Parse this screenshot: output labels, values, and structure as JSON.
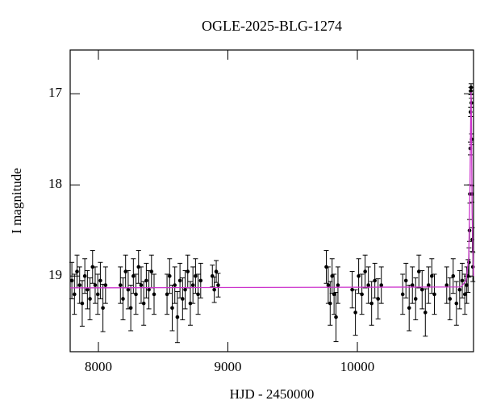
{
  "chart_data": {
    "type": "scatter",
    "title": "OGLE-2025-BLG-1274",
    "x_label": "HJD - 2450000",
    "y_label": "I magnitude",
    "xlim": [
      7782,
      10897
    ],
    "ylim": [
      16.52,
      19.83
    ],
    "y_inverted": true,
    "xticks": [
      8000,
      9000,
      10000
    ],
    "yticks": [
      17,
      18,
      19
    ],
    "points": {
      "color": "#000000",
      "x": [
        7795,
        7815,
        7835,
        7855,
        7875,
        7895,
        7915,
        7935,
        7955,
        7975,
        7995,
        8015,
        8035,
        8055,
        8170,
        8190,
        8210,
        8230,
        8250,
        8270,
        8290,
        8310,
        8330,
        8350,
        8370,
        8390,
        8410,
        8430,
        8530,
        8550,
        8570,
        8590,
        8610,
        8630,
        8650,
        8670,
        8690,
        8710,
        8730,
        8750,
        8770,
        8790,
        8880,
        8895,
        8910,
        8925,
        9760,
        9775,
        9790,
        9805,
        9820,
        9835,
        9850,
        9960,
        9985,
        10010,
        10035,
        10060,
        10085,
        10110,
        10135,
        10160,
        10185,
        10350,
        10375,
        10400,
        10425,
        10450,
        10475,
        10500,
        10525,
        10550,
        10575,
        10595,
        10690,
        10715,
        10740,
        10765,
        10790,
        10810,
        10830,
        10845,
        10855,
        10862,
        10866,
        10869,
        10872,
        10874,
        10876,
        10878,
        10880,
        10882,
        10885,
        10888,
        10892
      ],
      "values": [
        19.05,
        19.2,
        18.95,
        19.1,
        19.3,
        19.0,
        19.15,
        19.25,
        18.9,
        19.1,
        19.2,
        19.05,
        19.35,
        19.1,
        19.1,
        19.25,
        18.95,
        19.15,
        19.35,
        19.0,
        19.2,
        18.9,
        19.1,
        19.3,
        19.05,
        19.15,
        18.95,
        19.2,
        19.2,
        19.0,
        19.35,
        19.1,
        19.45,
        19.05,
        19.25,
        19.15,
        18.95,
        19.3,
        19.1,
        19.0,
        19.2,
        19.05,
        19.0,
        19.15,
        18.95,
        19.1,
        18.9,
        19.1,
        19.3,
        19.0,
        19.2,
        19.45,
        19.1,
        19.15,
        19.4,
        19.0,
        19.2,
        18.95,
        19.1,
        19.3,
        19.05,
        19.25,
        19.1,
        19.2,
        19.05,
        19.35,
        19.1,
        19.25,
        18.95,
        19.15,
        19.4,
        19.1,
        19.0,
        19.2,
        19.1,
        19.25,
        19.0,
        19.3,
        19.15,
        19.05,
        19.2,
        19.1,
        19.0,
        18.85,
        18.5,
        18.1,
        17.6,
        17.2,
        16.97,
        16.93,
        17.1,
        17.5,
        18.1,
        18.6,
        18.9
      ],
      "errors": [
        0.2,
        0.22,
        0.18,
        0.2,
        0.25,
        0.19,
        0.21,
        0.23,
        0.18,
        0.2,
        0.22,
        0.2,
        0.26,
        0.2,
        0.2,
        0.23,
        0.18,
        0.21,
        0.25,
        0.19,
        0.22,
        0.18,
        0.2,
        0.24,
        0.19,
        0.21,
        0.18,
        0.22,
        0.22,
        0.19,
        0.25,
        0.2,
        0.28,
        0.19,
        0.23,
        0.21,
        0.18,
        0.24,
        0.2,
        0.19,
        0.22,
        0.19,
        0.12,
        0.14,
        0.12,
        0.13,
        0.18,
        0.2,
        0.24,
        0.19,
        0.22,
        0.27,
        0.2,
        0.2,
        0.25,
        0.19,
        0.22,
        0.18,
        0.2,
        0.24,
        0.19,
        0.22,
        0.2,
        0.22,
        0.19,
        0.25,
        0.2,
        0.23,
        0.18,
        0.21,
        0.26,
        0.2,
        0.19,
        0.22,
        0.2,
        0.23,
        0.19,
        0.24,
        0.21,
        0.19,
        0.22,
        0.2,
        0.18,
        0.16,
        0.12,
        0.1,
        0.07,
        0.05,
        0.04,
        0.04,
        0.05,
        0.06,
        0.09,
        0.13,
        0.16
      ]
    },
    "model": {
      "color": "#cc33cc",
      "x": [
        7782,
        10800,
        10840,
        10860,
        10870,
        10875,
        10878,
        10881,
        10886,
        10897
      ],
      "values": [
        19.13,
        19.12,
        19.05,
        18.8,
        18.0,
        17.3,
        16.98,
        17.3,
        18.3,
        19.0
      ]
    }
  }
}
